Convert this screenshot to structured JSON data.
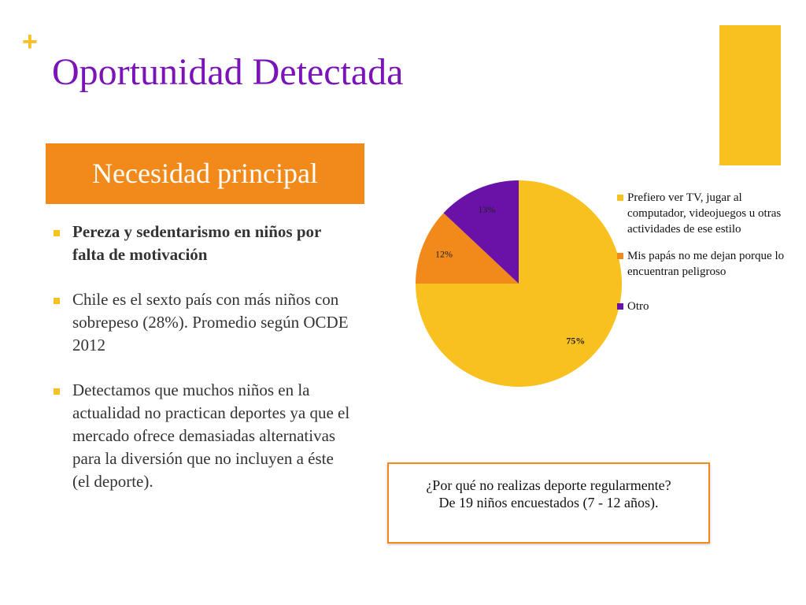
{
  "slide": {
    "plus_symbol": "+",
    "title": "Oportunidad Detectada",
    "banner": "Necesidad principal"
  },
  "bullets": [
    {
      "text": "Pereza y sedentarismo en niños por falta de motivación",
      "bold": true
    },
    {
      "text": "Chile es el sexto país con más niños con sobrepeso (28%). Promedio según OCDE 2012",
      "bold": false
    },
    {
      "text": " Detectamos que muchos niños en la actualidad no practican deportes ya que el mercado ofrece demasiadas alternativas para la diversión que no incluyen a éste (el deporte).",
      "bold": false
    }
  ],
  "chart_data": {
    "type": "pie",
    "slices": [
      {
        "label": "Prefiero ver TV, jugar al computador, videojuegos u otras actividades de ese estilo",
        "value": 75,
        "display": "75%",
        "color": "#f9c11f"
      },
      {
        "label": "Mis papás no me dejan porque lo encuentran peligroso",
        "value": 12,
        "display": "12%",
        "color": "#f28a1b"
      },
      {
        "label": "Otro",
        "value": 13,
        "display": "13%",
        "color": "#6a12a8"
      }
    ],
    "legend_position": "right"
  },
  "note": {
    "line1": "¿Por qué no realizas deporte regularmente?",
    "line2": "De 19 niños encuestados (7 - 12 años)."
  },
  "colors": {
    "title": "#7a14b8",
    "accent_orange": "#f28a1b",
    "accent_yellow": "#f9c11f",
    "purple": "#6a12a8"
  }
}
